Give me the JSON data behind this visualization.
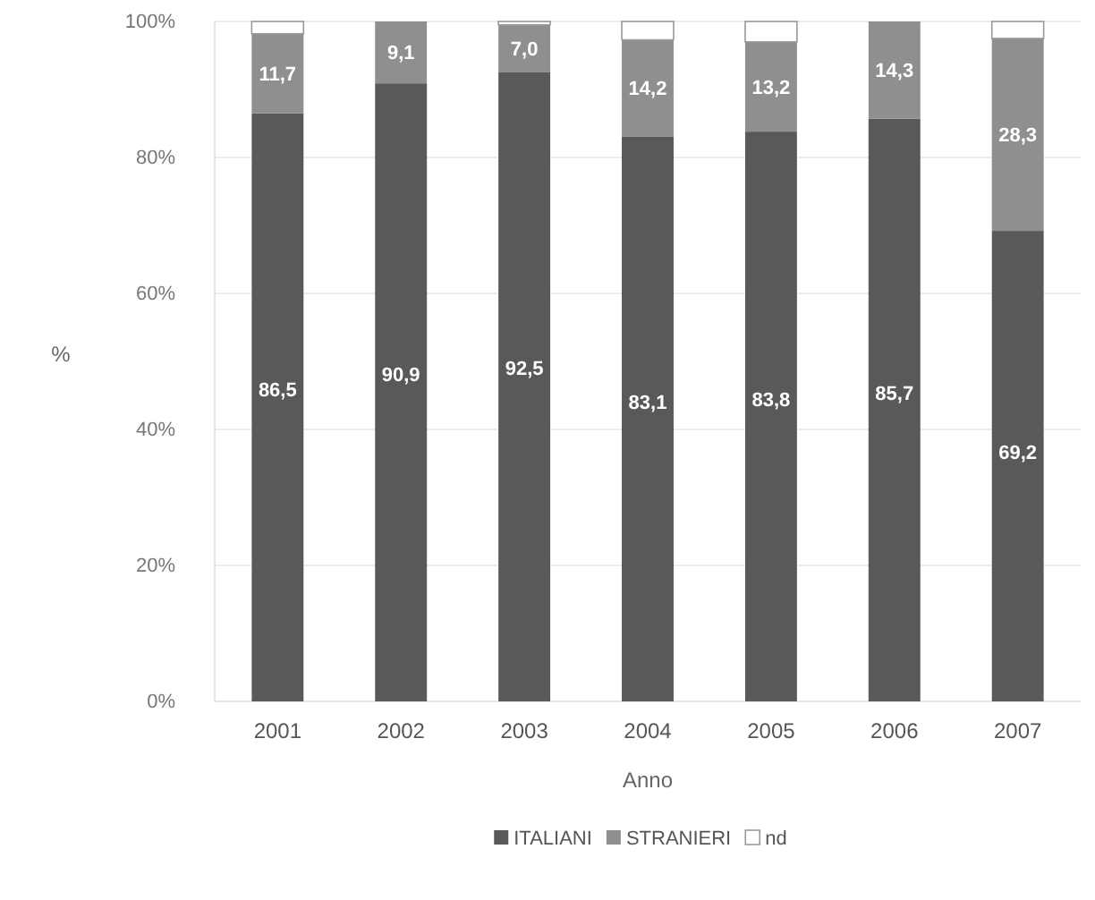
{
  "chart_data": {
    "type": "bar",
    "stacked": true,
    "xlabel": "Anno",
    "ylabel": "%",
    "categories": [
      "2001",
      "2002",
      "2003",
      "2004",
      "2005",
      "2006",
      "2007"
    ],
    "series": [
      {
        "name": "ITALIANI",
        "color": "#58595b",
        "values": [
          86.5,
          90.9,
          92.5,
          83.1,
          83.8,
          85.7,
          69.2
        ],
        "value_labels": [
          "86,5",
          "90,9",
          "92,5",
          "83,1",
          "83,8",
          "85,7",
          "69,2"
        ]
      },
      {
        "name": "STRANIERI",
        "color": "#8f8f8f",
        "values": [
          11.7,
          9.1,
          7.0,
          14.2,
          13.2,
          14.3,
          28.3
        ],
        "value_labels": [
          "11,7",
          "9,1",
          "7,0",
          "14,2",
          "13,2",
          "14,3",
          "28,3"
        ]
      },
      {
        "name": "nd",
        "color": "#ffffff",
        "values": [
          1.8,
          0,
          0.5,
          2.7,
          3.0,
          0,
          2.5
        ]
      }
    ],
    "ylim": [
      0,
      100
    ],
    "yticks": [
      {
        "value": 0,
        "label": "0%"
      },
      {
        "value": 20,
        "label": "20%"
      },
      {
        "value": 40,
        "label": "40%"
      },
      {
        "value": 60,
        "label": "60%"
      },
      {
        "value": 80,
        "label": "80%"
      },
      {
        "value": 100,
        "label": "100%"
      }
    ],
    "grid": "y",
    "legend": "bottom"
  }
}
